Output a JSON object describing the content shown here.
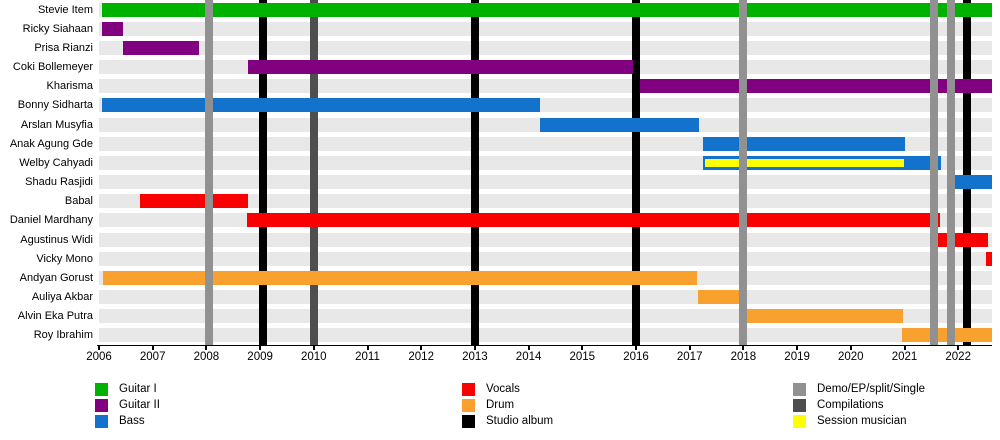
{
  "chart_data": {
    "type": "timeline",
    "description": "Band line-up timeline with release markers",
    "x_axis": {
      "tick_years": [
        2006,
        2007,
        2008,
        2009,
        2010,
        2011,
        2012,
        2013,
        2014,
        2015,
        2016,
        2017,
        2018,
        2019,
        2020,
        2021,
        2022
      ],
      "domain_start": 2006,
      "domain_end": 2022.63,
      "grid": false,
      "legend_position": "bottom"
    },
    "rows": [
      {
        "name": "Stevie Item",
        "role": "guitar1",
        "bars": [
          {
            "from": 2006.06,
            "to": 2022.63
          }
        ]
      },
      {
        "name": "Ricky Siahaan",
        "role": "guitar2",
        "bars": [
          {
            "from": 2006.06,
            "to": 2006.45
          }
        ]
      },
      {
        "name": "Prisa Rianzi",
        "role": "guitar2",
        "bars": [
          {
            "from": 2006.45,
            "to": 2007.87
          }
        ]
      },
      {
        "name": "Coki Bollemeyer",
        "role": "guitar2",
        "bars": [
          {
            "from": 2008.78,
            "to": 2015.94
          }
        ]
      },
      {
        "name": "Kharisma",
        "role": "guitar2",
        "bars": [
          {
            "from": 2016.07,
            "to": 2022.63
          }
        ]
      },
      {
        "name": "Bonny Sidharta",
        "role": "bass",
        "bars": [
          {
            "from": 2006.06,
            "to": 2014.21
          }
        ]
      },
      {
        "name": "Arslan Musyfia",
        "role": "bass",
        "bars": [
          {
            "from": 2014.21,
            "to": 2017.18
          }
        ]
      },
      {
        "name": "Anak Agung Gde",
        "role": "bass",
        "bars": [
          {
            "from": 2017.25,
            "to": 2021.01
          }
        ]
      },
      {
        "name": "Welby Cahyadi",
        "role": "bass",
        "bars": [
          {
            "from": 2017.25,
            "to": 2021.68
          }
        ],
        "session": {
          "from": 2017.28,
          "to": 2021.0
        }
      },
      {
        "name": "Shadu Rasjidi",
        "role": "bass",
        "bars": [
          {
            "from": 2021.79,
            "to": 2022.63
          }
        ]
      },
      {
        "name": "Babal",
        "role": "vocals",
        "bars": [
          {
            "from": 2006.76,
            "to": 2008.78
          }
        ]
      },
      {
        "name": "Daniel Mardhany",
        "role": "vocals",
        "bars": [
          {
            "from": 2008.76,
            "to": 2021.66
          }
        ]
      },
      {
        "name": "Agustinus Widi",
        "role": "vocals",
        "bars": [
          {
            "from": 2021.62,
            "to": 2022.55
          }
        ]
      },
      {
        "name": "Vicky Mono",
        "role": "vocals",
        "bars": [
          {
            "from": 2022.52,
            "to": 2022.63
          }
        ]
      },
      {
        "name": "Andyan Gorust",
        "role": "drum",
        "bars": [
          {
            "from": 2006.08,
            "to": 2017.13
          }
        ]
      },
      {
        "name": "Auliya Akbar",
        "role": "drum",
        "bars": [
          {
            "from": 2017.15,
            "to": 2018.0
          }
        ]
      },
      {
        "name": "Alvin Eka Putra",
        "role": "drum",
        "bars": [
          {
            "from": 2018.0,
            "to": 2020.97
          }
        ]
      },
      {
        "name": "Roy Ibrahim",
        "role": "drum",
        "bars": [
          {
            "from": 2020.95,
            "to": 2022.63
          }
        ]
      }
    ],
    "event_lines": [
      {
        "year": 2008.05,
        "kind": "demo",
        "layer": "front"
      },
      {
        "year": 2009.05,
        "kind": "studio_album",
        "layer": "back"
      },
      {
        "year": 2010.0,
        "kind": "compilations",
        "layer": "back"
      },
      {
        "year": 2013.0,
        "kind": "studio_album",
        "layer": "back"
      },
      {
        "year": 2016.0,
        "kind": "studio_album",
        "layer": "back"
      },
      {
        "year": 2018.0,
        "kind": "demo",
        "layer": "front"
      },
      {
        "year": 2021.55,
        "kind": "demo",
        "layer": "front"
      },
      {
        "year": 2021.87,
        "kind": "demo",
        "layer": "front"
      },
      {
        "year": 2022.17,
        "kind": "studio_album",
        "layer": "back"
      }
    ],
    "legend": [
      {
        "items": [
          {
            "label": "Guitar I",
            "color": "guitar1"
          },
          {
            "label": "Guitar II",
            "color": "guitar2"
          },
          {
            "label": "Bass",
            "color": "bass"
          }
        ]
      },
      {
        "items": [
          {
            "label": "Vocals",
            "color": "vocals"
          },
          {
            "label": "Drum",
            "color": "drum"
          },
          {
            "label": "Studio album",
            "color": "studio_album"
          }
        ]
      },
      {
        "items": [
          {
            "label": "Demo/EP/split/Single",
            "color": "demo"
          },
          {
            "label": "Compilations",
            "color": "compilations"
          },
          {
            "label": "Session musician",
            "color": "session"
          }
        ]
      }
    ]
  },
  "colors": {
    "guitar1": "#00b200",
    "guitar2": "#800080",
    "bass": "#1272cc",
    "vocals": "#fb0000",
    "drum": "#f9a12e",
    "studio_album": "#000000",
    "demo": "#919191",
    "compilations": "#4e4e4e",
    "session": "#ffff00",
    "row_stripe": "#e8e8e8",
    "axis": "#000000"
  }
}
